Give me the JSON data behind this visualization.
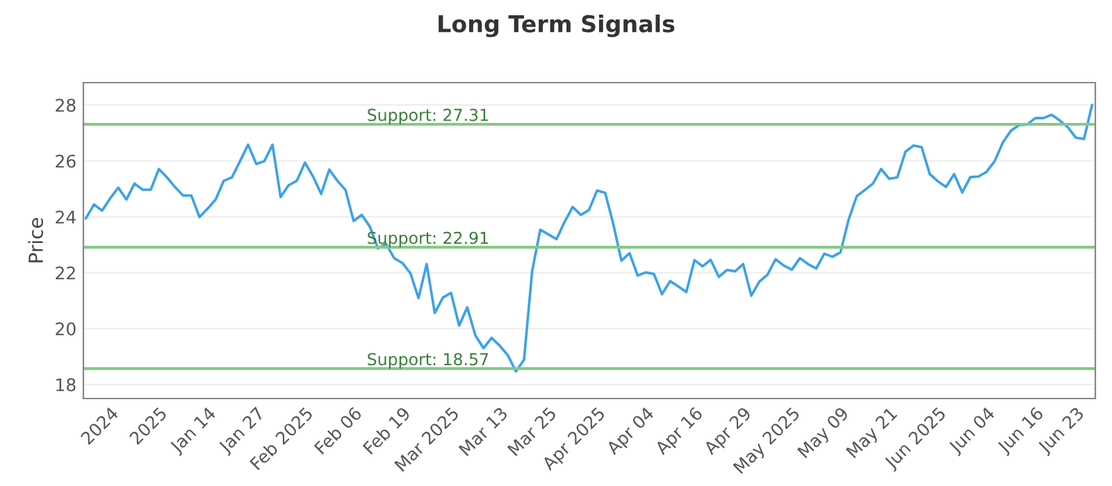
{
  "chart_data": {
    "type": "line",
    "title": "Long Term Signals",
    "ylabel": "Price",
    "categories": [
      null,
      null,
      null,
      "2024",
      null,
      null,
      null,
      null,
      null,
      "2025",
      null,
      null,
      null,
      null,
      null,
      "Jan 14",
      null,
      null,
      null,
      null,
      null,
      "Jan 27",
      null,
      null,
      null,
      null,
      null,
      "Feb 2025",
      null,
      null,
      null,
      null,
      null,
      "Feb 06",
      null,
      null,
      null,
      null,
      null,
      "Feb 19",
      null,
      null,
      null,
      null,
      null,
      "Mar 2025",
      null,
      null,
      null,
      null,
      null,
      "Mar 13",
      null,
      null,
      null,
      null,
      null,
      "Mar 25",
      null,
      null,
      null,
      null,
      null,
      "Apr 2025",
      null,
      null,
      null,
      null,
      null,
      "Apr 04",
      null,
      null,
      null,
      null,
      null,
      "Apr 16",
      null,
      null,
      null,
      null,
      null,
      "Apr 29",
      null,
      null,
      null,
      null,
      null,
      "May 2025",
      null,
      null,
      null,
      null,
      null,
      "May 09",
      null,
      null,
      null,
      null,
      null,
      "May 21",
      null,
      null,
      null,
      null,
      null,
      "Jun 2025",
      null,
      null,
      null,
      null,
      null,
      "Jun 04",
      null,
      null,
      null,
      null,
      null,
      "Jun 16",
      null,
      null,
      null,
      null,
      "Jun 23",
      null,
      null
    ],
    "series": [
      {
        "color": "#3ba2e6",
        "values": [
          23.94,
          24.44,
          24.22,
          24.66,
          25.04,
          24.62,
          25.19,
          24.97,
          24.97,
          25.71,
          25.41,
          25.06,
          24.76,
          24.76,
          23.99,
          24.29,
          24.62,
          25.29,
          25.41,
          25.99,
          26.58,
          25.89,
          25.99,
          26.58,
          24.71,
          25.13,
          25.29,
          25.94,
          25.44,
          24.82,
          25.69,
          25.29,
          24.96,
          23.85,
          24.07,
          23.65,
          22.87,
          23.03,
          22.52,
          22.35,
          21.98,
          21.09,
          22.31,
          20.56,
          21.11,
          21.28,
          20.11,
          20.76,
          19.76,
          19.3,
          19.67,
          19.39,
          19.05,
          18.47,
          18.89,
          22.06,
          23.54,
          23.37,
          23.2,
          23.82,
          24.35,
          24.07,
          24.24,
          24.94,
          24.86,
          23.74,
          22.43,
          22.7,
          21.9,
          22.01,
          21.96,
          21.23,
          21.7,
          21.51,
          21.31,
          22.45,
          22.23,
          22.46,
          21.85,
          22.1,
          22.05,
          22.31,
          21.18,
          21.68,
          21.93,
          22.48,
          22.26,
          22.11,
          22.52,
          22.31,
          22.15,
          22.68,
          22.57,
          22.73,
          23.9,
          24.74,
          24.96,
          25.19,
          25.71,
          25.36,
          25.41,
          26.33,
          26.55,
          26.49,
          25.53,
          25.27,
          25.07,
          25.53,
          24.87,
          25.42,
          25.44,
          25.61,
          25.99,
          26.66,
          27.08,
          27.28,
          27.3,
          27.53,
          27.53,
          27.65,
          27.45,
          27.21,
          26.83,
          26.78,
          28.0
        ]
      }
    ],
    "ylim": [
      17.5,
      28.8
    ],
    "yticks": [
      18,
      20,
      22,
      24,
      26,
      28
    ],
    "grid": "y",
    "ref_lines": [
      {
        "axis": "y",
        "value": 27.31,
        "label": "Support: 27.31",
        "color": "#86c986"
      },
      {
        "axis": "y",
        "value": 22.91,
        "label": "Support: 22.91",
        "color": "#86c986"
      },
      {
        "axis": "y",
        "value": 18.57,
        "label": "Support: 18.57",
        "color": "#86c986"
      }
    ]
  }
}
